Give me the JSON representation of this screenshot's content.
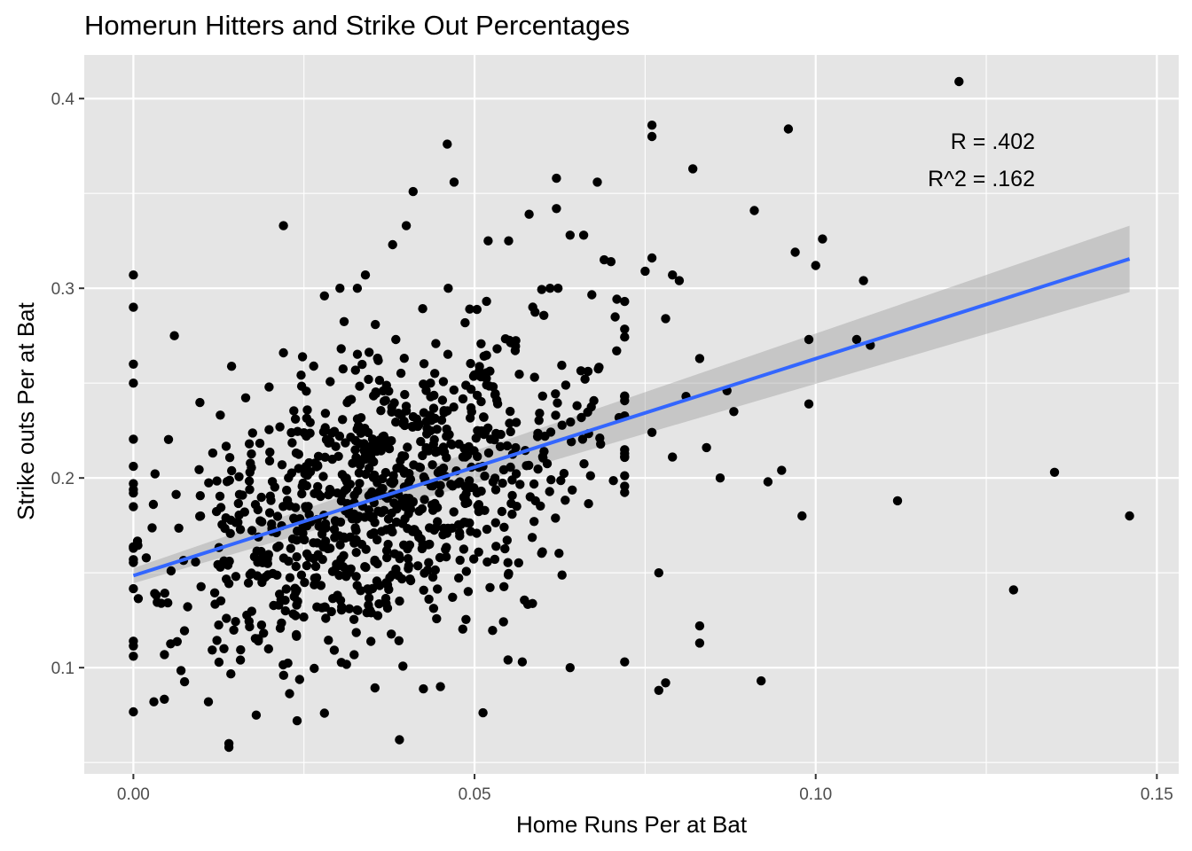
{
  "chart_data": {
    "type": "scatter",
    "title": "Homerun Hitters and Strike Out Percentages",
    "xlabel": "Home Runs Per at Bat",
    "ylabel": "Strike outs Per at Bat",
    "xlim": [
      -0.0072,
      0.1532
    ],
    "ylim": [
      0.044,
      0.423
    ],
    "x_ticks": [
      0.0,
      0.05,
      0.1,
      0.15
    ],
    "x_tick_labels": [
      "0.00",
      "0.05",
      "0.10",
      "0.15"
    ],
    "y_ticks": [
      0.1,
      0.2,
      0.3,
      0.4
    ],
    "y_tick_labels": [
      "0.1",
      "0.2",
      "0.3",
      "0.4"
    ],
    "grid": true,
    "panel_background": "#e5e5e5",
    "point_color": "#000000",
    "fit_line": {
      "method": "linear",
      "color": "#3366ff",
      "x": [
        0.0,
        0.146
      ],
      "y": [
        0.1485,
        0.3155
      ],
      "confidence_band": {
        "lower": [
          0.1445,
          0.298
        ],
        "upper": [
          0.1525,
          0.333
        ],
        "color": "#999999"
      }
    },
    "annotations": [
      "R = .402",
      "R^2 = .162"
    ],
    "outliers": [
      {
        "x": 0.121,
        "y": 0.409
      },
      {
        "x": 0.096,
        "y": 0.384
      },
      {
        "x": 0.076,
        "y": 0.386
      },
      {
        "x": 0.076,
        "y": 0.38
      },
      {
        "x": 0.082,
        "y": 0.363
      },
      {
        "x": 0.046,
        "y": 0.376
      },
      {
        "x": 0.041,
        "y": 0.351
      },
      {
        "x": 0.047,
        "y": 0.356
      },
      {
        "x": 0.068,
        "y": 0.356
      },
      {
        "x": 0.062,
        "y": 0.358
      },
      {
        "x": 0.022,
        "y": 0.333
      },
      {
        "x": 0.091,
        "y": 0.341
      },
      {
        "x": 0.101,
        "y": 0.326
      },
      {
        "x": 0.097,
        "y": 0.319
      },
      {
        "x": 0.1,
        "y": 0.312
      },
      {
        "x": 0.107,
        "y": 0.304
      },
      {
        "x": 0.135,
        "y": 0.203
      },
      {
        "x": 0.146,
        "y": 0.18
      },
      {
        "x": 0.129,
        "y": 0.141
      },
      {
        "x": 0.112,
        "y": 0.188
      },
      {
        "x": 0.092,
        "y": 0.093
      },
      {
        "x": 0.098,
        "y": 0.18
      },
      {
        "x": 0.095,
        "y": 0.204
      },
      {
        "x": 0.093,
        "y": 0.198
      },
      {
        "x": 0.099,
        "y": 0.239
      },
      {
        "x": 0.099,
        "y": 0.273
      },
      {
        "x": 0.106,
        "y": 0.273
      },
      {
        "x": 0.108,
        "y": 0.27
      },
      {
        "x": 0.0,
        "y": 0.307
      },
      {
        "x": 0.0,
        "y": 0.29
      },
      {
        "x": 0.0,
        "y": 0.26
      },
      {
        "x": 0.0,
        "y": 0.25
      },
      {
        "x": 0.0,
        "y": 0.197
      },
      {
        "x": 0.0,
        "y": 0.163
      },
      {
        "x": 0.0,
        "y": 0.106
      },
      {
        "x": 0.039,
        "y": 0.062
      },
      {
        "x": 0.014,
        "y": 0.058
      },
      {
        "x": 0.014,
        "y": 0.06
      },
      {
        "x": 0.077,
        "y": 0.088
      },
      {
        "x": 0.078,
        "y": 0.092
      },
      {
        "x": 0.083,
        "y": 0.122
      },
      {
        "x": 0.083,
        "y": 0.113
      },
      {
        "x": 0.087,
        "y": 0.246
      },
      {
        "x": 0.088,
        "y": 0.235
      },
      {
        "x": 0.086,
        "y": 0.2
      },
      {
        "x": 0.084,
        "y": 0.216
      },
      {
        "x": 0.081,
        "y": 0.243
      },
      {
        "x": 0.083,
        "y": 0.263
      },
      {
        "x": 0.08,
        "y": 0.304
      },
      {
        "x": 0.079,
        "y": 0.307
      },
      {
        "x": 0.076,
        "y": 0.316
      },
      {
        "x": 0.078,
        "y": 0.284
      },
      {
        "x": 0.075,
        "y": 0.309
      },
      {
        "x": 0.079,
        "y": 0.211
      },
      {
        "x": 0.076,
        "y": 0.224
      },
      {
        "x": 0.077,
        "y": 0.15
      },
      {
        "x": 0.072,
        "y": 0.103
      },
      {
        "x": 0.064,
        "y": 0.1
      },
      {
        "x": 0.057,
        "y": 0.103
      },
      {
        "x": 0.045,
        "y": 0.09
      },
      {
        "x": 0.006,
        "y": 0.275
      },
      {
        "x": 0.022,
        "y": 0.266
      },
      {
        "x": 0.028,
        "y": 0.296
      },
      {
        "x": 0.034,
        "y": 0.307
      },
      {
        "x": 0.038,
        "y": 0.323
      },
      {
        "x": 0.04,
        "y": 0.333
      },
      {
        "x": 0.052,
        "y": 0.325
      },
      {
        "x": 0.055,
        "y": 0.325
      },
      {
        "x": 0.058,
        "y": 0.339
      },
      {
        "x": 0.062,
        "y": 0.342
      },
      {
        "x": 0.064,
        "y": 0.328
      },
      {
        "x": 0.066,
        "y": 0.328
      },
      {
        "x": 0.07,
        "y": 0.314
      },
      {
        "x": 0.069,
        "y": 0.315
      },
      {
        "x": 0.003,
        "y": 0.082
      },
      {
        "x": 0.011,
        "y": 0.082
      },
      {
        "x": 0.024,
        "y": 0.072
      },
      {
        "x": 0.028,
        "y": 0.076
      },
      {
        "x": 0.018,
        "y": 0.075
      }
    ],
    "random_points": {
      "count": 930,
      "x_mean": 0.036,
      "x_sd": 0.0165,
      "x_min": 0.0,
      "x_max": 0.072,
      "intercept": 0.1485,
      "slope": 1.144,
      "residual_sd": 0.04,
      "y_min": 0.07,
      "y_max": 0.3,
      "seed": 42
    }
  }
}
